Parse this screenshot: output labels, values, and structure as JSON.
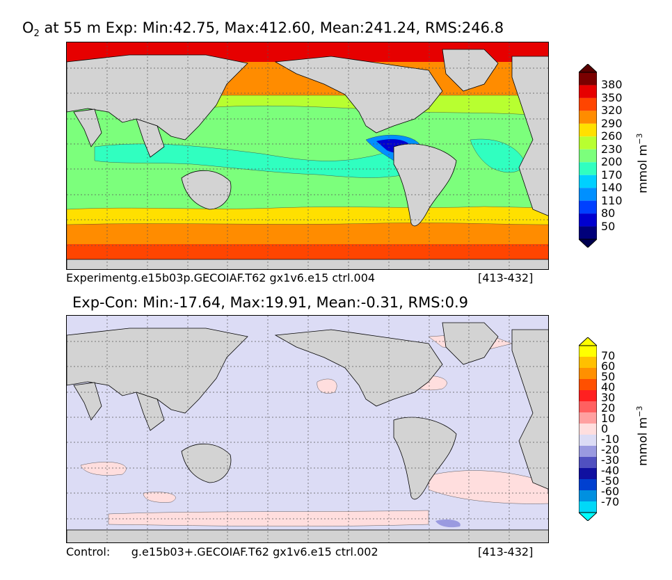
{
  "panels": [
    {
      "title_pre": "O",
      "title_sub": "2",
      "title_rest": " at 55 m Exp: Min:42.75, Max:412.60, Mean:241.24, RMS:246.8",
      "caption_left": "Experimentg.e15b03p.GECOIAF.T62 gx1v6.e15 ctrl.004",
      "caption_right": "[413-432]",
      "colorbar": {
        "ticks": [
          "380",
          "350",
          "320",
          "290",
          "260",
          "230",
          "200",
          "170",
          "140",
          "110",
          "80",
          "50"
        ],
        "unit_main": "mmol m",
        "unit_sup": "−3",
        "colors": [
          "#7a0000",
          "#e60000",
          "#ff4500",
          "#ff8c00",
          "#ffe000",
          "#b8ff30",
          "#7cff7c",
          "#30ffc0",
          "#00d0ff",
          "#0090ff",
          "#0040ff",
          "#0000d0",
          "#00007a"
        ],
        "over_color": "#5a0000",
        "under_color": "#000050"
      },
      "map_colors": {
        "arctic": "#e60000",
        "north_subpolar": "#ff8c00",
        "north_temperate": "#b8ff30",
        "subtropic": "#7cff7c",
        "tropic": "#30ffc0",
        "omz": "#0090ff",
        "omz_core": "#0000d0",
        "south_temperate": "#ffe000",
        "south_subpolar": "#ff8c00",
        "southern": "#ff4500",
        "land": "#d3d3d3",
        "ice": "#ffffff"
      }
    },
    {
      "title_pre": "Exp-Con: Min:-17.64, Max:19.91, Mean:-0.31, RMS:0.9",
      "caption_left": "Control:      g.e15b03+.GECOIAF.T62 gx1v6.e15 ctrl.002",
      "caption_right": "[413-432]",
      "colorbar": {
        "ticks": [
          "70",
          "60",
          "50",
          "40",
          "30",
          "20",
          "10",
          "0",
          "-10",
          "-20",
          "-30",
          "-40",
          "-50",
          "-60",
          "-70"
        ],
        "unit_main": "mmol m",
        "unit_sup": "−3",
        "colors": [
          "#ffff00",
          "#ffc000",
          "#ff9000",
          "#ff5000",
          "#ff2020",
          "#ff6060",
          "#ffa0a0",
          "#ffdede",
          "#dcdcf5",
          "#9a9ae0",
          "#5050c0",
          "#1010a0",
          "#0040d0",
          "#0090e0",
          "#00d8f8"
        ],
        "over_color": "#ffff00",
        "under_color": "#00ffff"
      },
      "map_colors": {
        "ocean": "#dcdcf5",
        "positive": "#ffdede",
        "negative": "#9a9ae0",
        "land": "#d3d3d3",
        "ice": "#ffffff"
      }
    }
  ]
}
